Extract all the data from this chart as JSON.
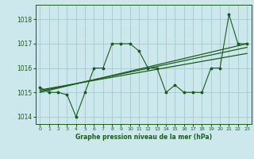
{
  "title": "Graphe pression niveau de la mer (hPa)",
  "background_color": "#cde8ec",
  "grid_color": "#aacdd4",
  "line_color": "#1a5c1a",
  "ylim": [
    1013.7,
    1018.6
  ],
  "xlim": [
    -0.5,
    23.5
  ],
  "yticks": [
    1014,
    1015,
    1016,
    1017,
    1018
  ],
  "xticks": [
    0,
    1,
    2,
    3,
    4,
    5,
    6,
    7,
    8,
    9,
    10,
    11,
    12,
    13,
    14,
    15,
    16,
    17,
    18,
    19,
    20,
    21,
    22,
    23
  ],
  "series1": {
    "x": [
      0,
      1,
      2,
      3,
      4,
      5,
      6,
      7,
      8,
      9,
      10,
      11,
      12,
      13,
      14,
      15,
      16,
      17,
      18,
      19,
      20,
      21,
      22,
      23
    ],
    "y": [
      1015.2,
      1015.0,
      1015.0,
      1014.9,
      1014.0,
      1015.0,
      1016.0,
      1016.0,
      1017.0,
      1017.0,
      1017.0,
      1016.7,
      1016.0,
      1016.0,
      1015.0,
      1015.3,
      1015.0,
      1015.0,
      1015.0,
      1016.0,
      1016.0,
      1018.2,
      1017.0,
      1017.0
    ]
  },
  "series2": {
    "x": [
      0,
      23
    ],
    "y": [
      1015.0,
      1017.0
    ]
  },
  "series3": {
    "x": [
      0,
      23
    ],
    "y": [
      1015.05,
      1016.85
    ]
  },
  "series4": {
    "x": [
      0,
      23
    ],
    "y": [
      1015.1,
      1016.6
    ]
  }
}
